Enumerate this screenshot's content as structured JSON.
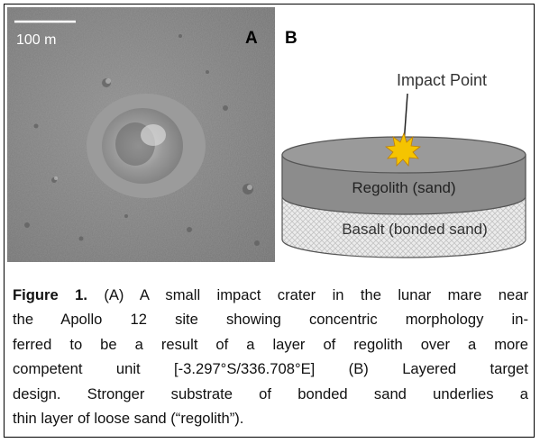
{
  "panel_a": {
    "scale_bar": "100 m",
    "label": "A"
  },
  "panel_b": {
    "label": "B",
    "impact_label": "Impact Point",
    "top_layer": "Regolith (sand)",
    "bottom_layer": "Basalt (bonded sand)"
  },
  "caption": {
    "label": "Figure 1.",
    "lines": [
      " (A) A small impact crater in the lunar mare near",
      "the Apollo 12 site showing concentric morphology in-",
      "ferred to be a result of a layer of regolith over a more",
      "competent unit [-3.297°S/336.708°E]  (B) Layered target",
      "design. Stronger substrate of bonded sand underlies a",
      "thin layer of loose sand (“regolith”)."
    ]
  }
}
